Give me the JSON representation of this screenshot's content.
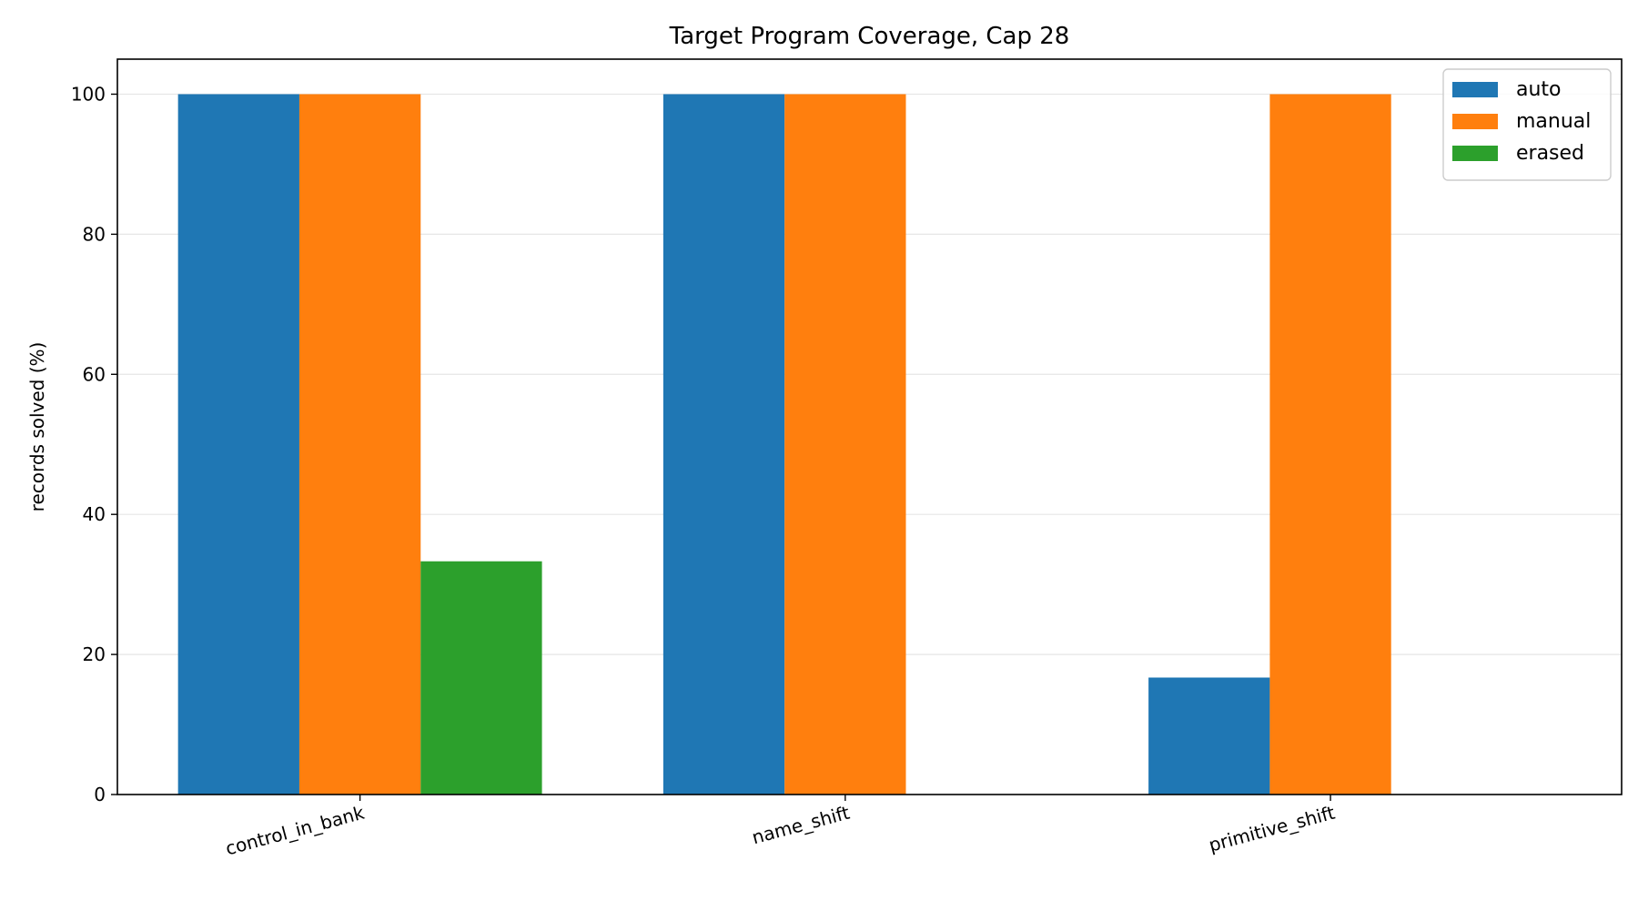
{
  "chart_data": {
    "type": "bar",
    "title": "Target Program Coverage, Cap 28",
    "xlabel": "",
    "ylabel": "records solved (%)",
    "categories": [
      "control_in_bank",
      "name_shift",
      "primitive_shift"
    ],
    "series": [
      {
        "name": "auto",
        "color": "#1f77b4",
        "values": [
          100,
          100,
          16.7
        ]
      },
      {
        "name": "manual",
        "color": "#ff7f0e",
        "values": [
          100,
          100,
          100
        ]
      },
      {
        "name": "erased",
        "color": "#2ca02c",
        "values": [
          33.3,
          0,
          0
        ]
      }
    ],
    "ylim": [
      0,
      105
    ],
    "yticks": [
      0,
      20,
      40,
      60,
      80,
      100
    ],
    "grid": "y",
    "legend_position": "top-right"
  }
}
